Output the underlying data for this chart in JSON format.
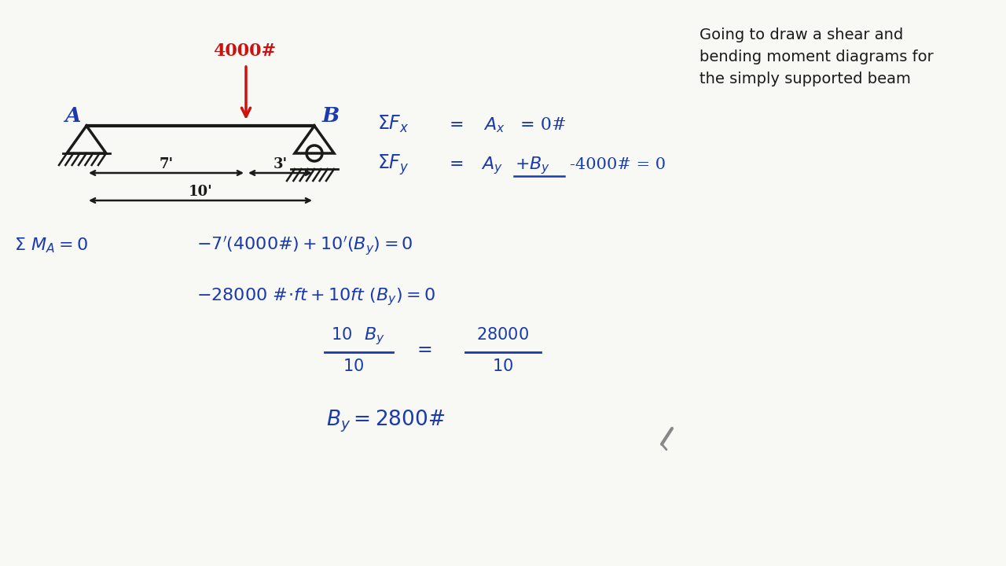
{
  "bg_color": "#f8f8f4",
  "text_color_black": "#1a1a1a",
  "text_color_blue": "#1a3aad",
  "text_color_red": "#cc1111",
  "title_text": "Going to draw a shear and\nbending moment diagrams for\nthe simply supported beam",
  "title_fontsize": 14,
  "force_label": "4000#",
  "dim1": "7'",
  "dim2": "3'",
  "dim3": "10'"
}
